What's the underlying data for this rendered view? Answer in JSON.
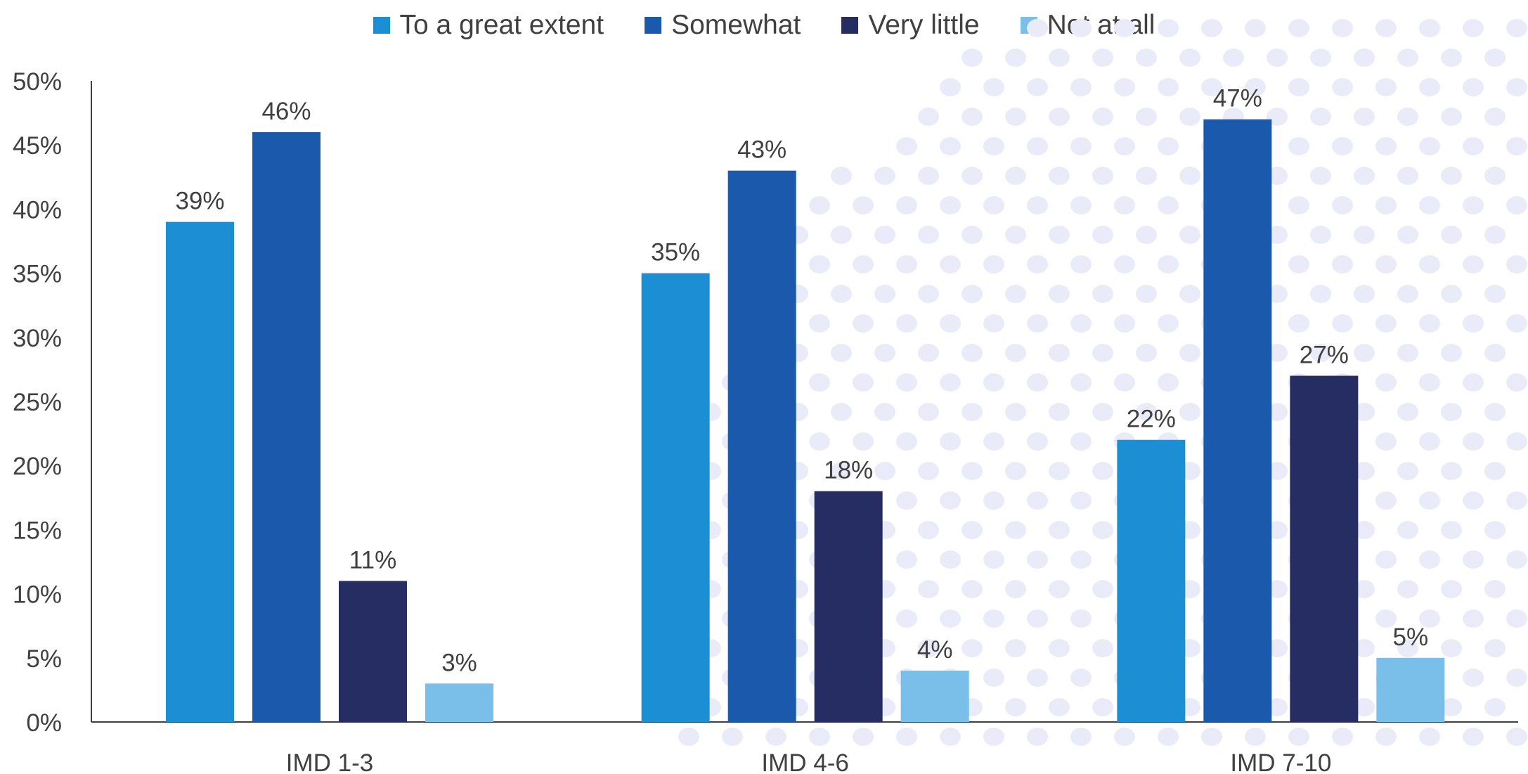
{
  "chart_data": {
    "type": "bar",
    "categories": [
      "IMD 1-3",
      "IMD 4-6",
      "IMD 7-10"
    ],
    "series": [
      {
        "name": "To a great extent",
        "values": [
          39,
          35,
          22
        ],
        "labels": [
          "39%",
          "35%",
          "22%"
        ],
        "color": "#1C8ED3"
      },
      {
        "name": "Somewhat",
        "values": [
          46,
          43,
          47
        ],
        "labels": [
          "46%",
          "43%",
          "47%"
        ],
        "color": "#1B59AC"
      },
      {
        "name": "Very little",
        "values": [
          11,
          18,
          27
        ],
        "labels": [
          "11%",
          "18%",
          "27%"
        ],
        "color": "#262D62"
      },
      {
        "name": "Not at all",
        "values": [
          3,
          4,
          5
        ],
        "labels": [
          "3%",
          "4%",
          "5%"
        ],
        "color": "#7ABFEA"
      }
    ],
    "ylim": [
      0,
      50
    ],
    "yticks": [
      "0%",
      "5%",
      "10%",
      "15%",
      "20%",
      "25%",
      "30%",
      "35%",
      "40%",
      "45%",
      "50%"
    ],
    "grid": false,
    "legend": "top"
  }
}
